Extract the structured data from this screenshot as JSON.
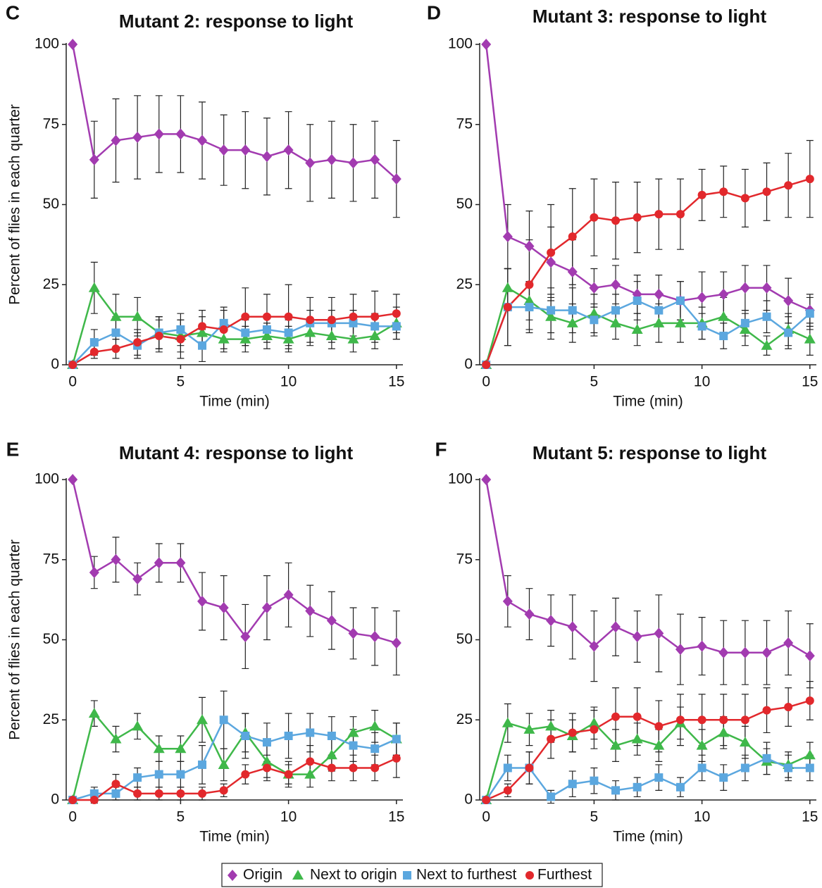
{
  "chart_data": [
    {
      "type": "line",
      "panel_label": "C",
      "title": "Mutant 2: response to light",
      "xlabel": "Time (min)",
      "ylabel": "Percent of flies in each quarter",
      "x": [
        0,
        1,
        2,
        3,
        4,
        5,
        6,
        7,
        8,
        9,
        10,
        11,
        12,
        13,
        14,
        15
      ],
      "xlim": [
        -0.3,
        15.3
      ],
      "xticks": [
        0,
        5,
        10,
        15
      ],
      "ylim": [
        0,
        100
      ],
      "yticks": [
        0,
        25,
        50,
        75,
        100
      ],
      "series": [
        {
          "name": "Origin",
          "color": "#a23bb0",
          "marker": "diamond",
          "values": [
            100,
            64,
            70,
            71,
            72,
            72,
            70,
            67,
            67,
            65,
            67,
            63,
            64,
            63,
            64,
            58
          ],
          "errors": [
            0,
            12,
            13,
            13,
            12,
            12,
            12,
            11,
            12,
            12,
            12,
            12,
            12,
            12,
            12,
            12
          ]
        },
        {
          "name": "Next to origin",
          "color": "#3fb84a",
          "marker": "triangle",
          "values": [
            0,
            24,
            15,
            15,
            10,
            9,
            10,
            8,
            8,
            9,
            8,
            10,
            9,
            8,
            9,
            13
          ],
          "errors": [
            0,
            8,
            7,
            6,
            5,
            5,
            5,
            4,
            4,
            4,
            4,
            4,
            4,
            4,
            4,
            5
          ]
        },
        {
          "name": "Next to furthest",
          "color": "#5ba7df",
          "marker": "square",
          "values": [
            0,
            7,
            10,
            6,
            10,
            11,
            6,
            13,
            10,
            11,
            10,
            13,
            13,
            13,
            12,
            12
          ],
          "errors": [
            0,
            4,
            5,
            4,
            5,
            5,
            5,
            5,
            4,
            4,
            4,
            4,
            4,
            4,
            4,
            4
          ]
        },
        {
          "name": "Furthest",
          "color": "#e2282c",
          "marker": "circle",
          "values": [
            0,
            4,
            5,
            7,
            9,
            8,
            12,
            11,
            15,
            15,
            15,
            14,
            14,
            15,
            15,
            16
          ],
          "errors": [
            0,
            2,
            3,
            4,
            5,
            6,
            5,
            6,
            9,
            7,
            10,
            7,
            7,
            7,
            8,
            6
          ]
        }
      ]
    },
    {
      "type": "line",
      "panel_label": "D",
      "title": "Mutant 3: response to light",
      "xlabel": "Time (min)",
      "x": [
        0,
        1,
        2,
        3,
        4,
        5,
        6,
        7,
        8,
        9,
        10,
        11,
        12,
        13,
        14,
        15
      ],
      "xlim": [
        -0.3,
        15.3
      ],
      "xticks": [
        0,
        5,
        10,
        15
      ],
      "ylim": [
        0,
        100
      ],
      "yticks": [
        0,
        25,
        50,
        75,
        100
      ],
      "series": [
        {
          "name": "Origin",
          "color": "#a23bb0",
          "marker": "diamond",
          "values": [
            100,
            40,
            37,
            32,
            29,
            24,
            25,
            22,
            22,
            20,
            21,
            22,
            24,
            24,
            20,
            17
          ],
          "errors": [
            0,
            10,
            11,
            11,
            10,
            6,
            6,
            6,
            6,
            6,
            8,
            7,
            7,
            7,
            7,
            5
          ]
        },
        {
          "name": "Next to origin",
          "color": "#3fb84a",
          "marker": "triangle",
          "values": [
            0,
            24,
            20,
            15,
            13,
            16,
            13,
            11,
            13,
            13,
            13,
            15,
            11,
            6,
            11,
            8
          ],
          "errors": [
            0,
            6,
            6,
            7,
            6,
            6,
            5,
            5,
            6,
            6,
            5,
            6,
            5,
            3,
            5,
            5
          ]
        },
        {
          "name": "Next to furthest",
          "color": "#5ba7df",
          "marker": "square",
          "values": [
            0,
            18,
            18,
            17,
            17,
            14,
            17,
            20,
            17,
            20,
            12,
            9,
            13,
            15,
            10,
            16
          ],
          "errors": [
            0,
            12,
            8,
            7,
            7,
            5,
            5,
            6,
            5,
            6,
            4,
            4,
            4,
            5,
            5,
            5
          ]
        },
        {
          "name": "Furthest",
          "color": "#e2282c",
          "marker": "circle",
          "values": [
            0,
            18,
            25,
            35,
            40,
            46,
            45,
            46,
            47,
            47,
            53,
            54,
            52,
            54,
            56,
            58
          ],
          "errors": [
            0,
            12,
            14,
            15,
            15,
            12,
            12,
            11,
            11,
            11,
            8,
            8,
            9,
            9,
            10,
            12
          ]
        }
      ]
    },
    {
      "type": "line",
      "panel_label": "E",
      "title": "Mutant 4: response to light",
      "xlabel": "Time (min)",
      "ylabel": "Percent of flies in each quarter",
      "x": [
        0,
        1,
        2,
        3,
        4,
        5,
        6,
        7,
        8,
        9,
        10,
        11,
        12,
        13,
        14,
        15
      ],
      "xlim": [
        -0.3,
        15.3
      ],
      "xticks": [
        0,
        5,
        10,
        15
      ],
      "ylim": [
        0,
        100
      ],
      "yticks": [
        0,
        25,
        50,
        75,
        100
      ],
      "series": [
        {
          "name": "Origin",
          "color": "#a23bb0",
          "marker": "diamond",
          "values": [
            100,
            71,
            75,
            69,
            74,
            74,
            62,
            60,
            51,
            60,
            64,
            59,
            56,
            52,
            51,
            49
          ],
          "errors": [
            0,
            5,
            7,
            5,
            6,
            6,
            9,
            10,
            10,
            10,
            10,
            8,
            9,
            8,
            9,
            10
          ]
        },
        {
          "name": "Next to origin",
          "color": "#3fb84a",
          "marker": "triangle",
          "values": [
            0,
            27,
            19,
            23,
            16,
            16,
            25,
            11,
            21,
            12,
            8,
            8,
            14,
            21,
            23,
            19
          ],
          "errors": [
            0,
            4,
            4,
            4,
            4,
            4,
            7,
            5,
            6,
            5,
            4,
            4,
            5,
            5,
            5,
            5
          ]
        },
        {
          "name": "Next to furthest",
          "color": "#5ba7df",
          "marker": "square",
          "values": [
            0,
            2,
            2,
            7,
            8,
            8,
            11,
            25,
            20,
            18,
            20,
            21,
            20,
            17,
            16,
            19
          ],
          "errors": [
            0,
            2,
            2,
            3,
            4,
            4,
            6,
            9,
            7,
            6,
            7,
            6,
            6,
            5,
            5,
            5
          ]
        },
        {
          "name": "Furthest",
          "color": "#e2282c",
          "marker": "circle",
          "values": [
            0,
            0,
            5,
            2,
            2,
            2,
            2,
            3,
            8,
            10,
            8,
            12,
            10,
            10,
            10,
            13
          ],
          "errors": [
            0,
            1,
            3,
            2,
            2,
            2,
            2,
            2,
            3,
            4,
            3,
            5,
            4,
            4,
            4,
            6
          ]
        }
      ]
    },
    {
      "type": "line",
      "panel_label": "F",
      "title": "Mutant 5: response to light",
      "xlabel": "Time (min)",
      "x": [
        0,
        1,
        2,
        3,
        4,
        5,
        6,
        7,
        8,
        9,
        10,
        11,
        12,
        13,
        14,
        15
      ],
      "xlim": [
        -0.3,
        15.3
      ],
      "xticks": [
        0,
        5,
        10,
        15
      ],
      "ylim": [
        0,
        100
      ],
      "yticks": [
        0,
        25,
        50,
        75,
        100
      ],
      "series": [
        {
          "name": "Origin",
          "color": "#a23bb0",
          "marker": "diamond",
          "values": [
            100,
            62,
            58,
            56,
            54,
            48,
            54,
            51,
            52,
            47,
            48,
            46,
            46,
            46,
            49,
            45
          ],
          "errors": [
            0,
            8,
            8,
            8,
            10,
            11,
            9,
            8,
            12,
            11,
            9,
            10,
            10,
            10,
            10,
            10
          ]
        },
        {
          "name": "Next to origin",
          "color": "#3fb84a",
          "marker": "triangle",
          "values": [
            0,
            24,
            22,
            23,
            20,
            24,
            17,
            19,
            17,
            24,
            17,
            21,
            18,
            12,
            11,
            14
          ],
          "errors": [
            0,
            6,
            5,
            5,
            5,
            5,
            5,
            5,
            5,
            5,
            5,
            5,
            5,
            4,
            4,
            4
          ]
        },
        {
          "name": "Next to furthest",
          "color": "#5ba7df",
          "marker": "square",
          "values": [
            0,
            10,
            10,
            1,
            5,
            6,
            3,
            4,
            7,
            4,
            10,
            7,
            10,
            13,
            10,
            10
          ],
          "errors": [
            0,
            4,
            5,
            2,
            4,
            4,
            3,
            3,
            4,
            3,
            4,
            4,
            4,
            5,
            4,
            4
          ]
        },
        {
          "name": "Furthest",
          "color": "#e2282c",
          "marker": "circle",
          "values": [
            0,
            3,
            10,
            19,
            21,
            22,
            26,
            26,
            23,
            25,
            25,
            25,
            25,
            28,
            29,
            31
          ],
          "errors": [
            0,
            2,
            5,
            6,
            6,
            6,
            9,
            9,
            8,
            8,
            8,
            8,
            8,
            7,
            6,
            6
          ]
        }
      ]
    }
  ]
}
